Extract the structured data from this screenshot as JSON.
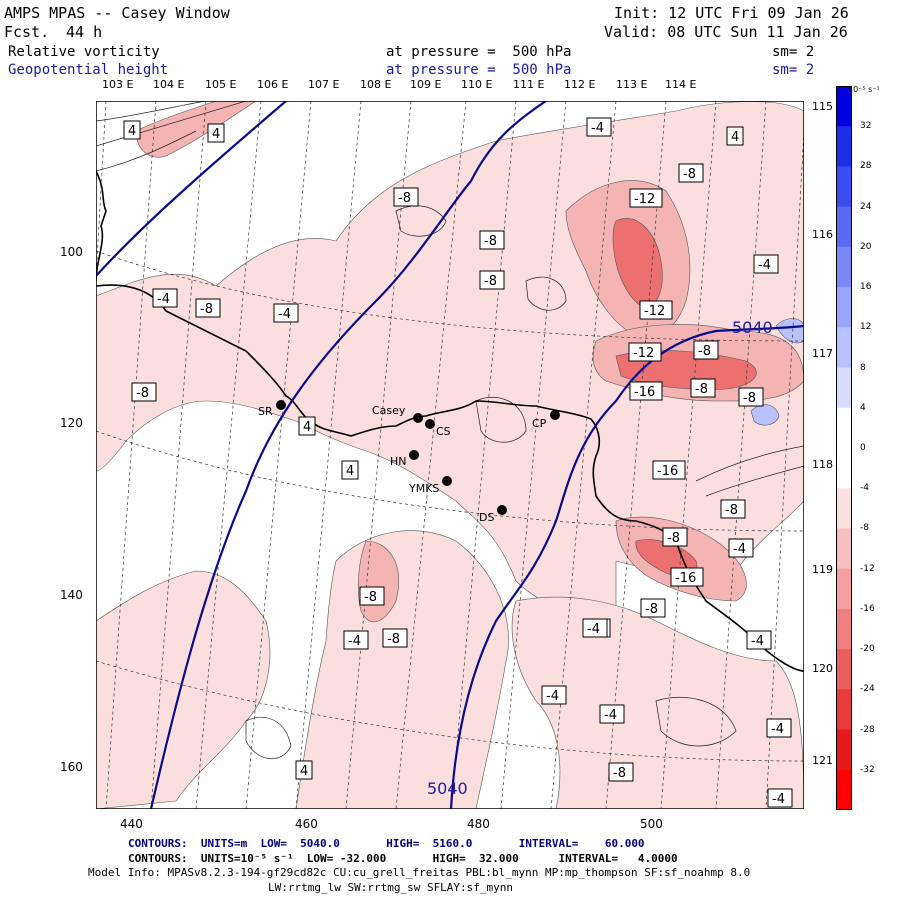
{
  "header": {
    "title": "AMPS MPAS -- Casey Window",
    "fcst_label": "Fcst.",
    "fcst_value": "44 h",
    "init": "Init: 12 UTC Fri 09 Jan 26",
    "valid": "Valid: 08 UTC Sun 11 Jan 26",
    "field1": "Relative vorticity",
    "field2": "Geopotential height",
    "pressure1": "at pressure =  500 hPa",
    "pressure2": "at pressure =  500 hPa",
    "sm1": "sm= 2",
    "sm2": "sm= 2"
  },
  "lon_labels": [
    "103 E",
    "104 E",
    "105 E",
    "106 E",
    "107 E",
    "108 E",
    "109 E",
    "110 E",
    "111 E",
    "112 E",
    "113 E",
    "114 E"
  ],
  "right_labels": [
    "115 E",
    "116 E",
    "117 E",
    "118 E",
    "119 E",
    "120 E",
    "121 E"
  ],
  "x_ticks": [
    "440",
    "460",
    "480",
    "500"
  ],
  "y_ticks": [
    "100",
    "120",
    "140",
    "160"
  ],
  "colorbar": {
    "unit": "10⁻⁵ s⁻¹",
    "ticks": [
      "32",
      "28",
      "24",
      "20",
      "16",
      "12",
      "8",
      "4",
      "0",
      "-4",
      "-8",
      "-12",
      "-16",
      "-20",
      "-24",
      "-28",
      "-32"
    ],
    "colors": [
      "#0000e0",
      "#1f2ee8",
      "#3d4cf0",
      "#5b6af5",
      "#7a88f8",
      "#99a6fb",
      "#b8c2fd",
      "#d7ddfe",
      "#ffffff",
      "#ffffff",
      "#fbe0e0",
      "#f7c0c0",
      "#f3a0a0",
      "#ef7f7f",
      "#eb5e5e",
      "#e83c3c",
      "#e61a1a",
      "#ff0000"
    ]
  },
  "stations": [
    {
      "name": "SR"
    },
    {
      "name": "Casey"
    },
    {
      "name": "CS"
    },
    {
      "name": "HN"
    },
    {
      "name": "YMKS"
    },
    {
      "name": "DS"
    },
    {
      "name": "CP"
    }
  ],
  "contour_labels": [
    "4",
    "4",
    "-4",
    "-8",
    "-4",
    "-8",
    "-8",
    "-8",
    "-8",
    "-8",
    "-12",
    "-12",
    "-8",
    "-4",
    "-12",
    "-8",
    "-16",
    "-8",
    "-4",
    "-16",
    "-8",
    "-8",
    "-4",
    "-16",
    "-8",
    "-4",
    "-8",
    "-4",
    "-8",
    "-4",
    "-4",
    "-4",
    "-8",
    "-4",
    "-4",
    "-4",
    "4",
    "4",
    "4",
    "4"
  ],
  "height_labels": [
    "5040",
    "5040"
  ],
  "footer": {
    "line1": "CONTOURS:  UNITS=m  LOW=  5040.0       HIGH=  5160.0       INTERVAL=    60.000",
    "line2": "CONTOURS:  UNITS=10⁻⁵ s⁻¹  LOW= -32.000       HIGH=  32.000      INTERVAL=   4.0000",
    "line3": "Model Info: MPASv8.2.3-194-gf29cd82c CU:cu_grell_freitas PBL:bl_mynn MP:mp_thompson SF:sf_noahmp 8.0",
    "line4": "LW:rrtmg_lw SW:rrtmg_sw SFLAY:sf_mynn"
  }
}
